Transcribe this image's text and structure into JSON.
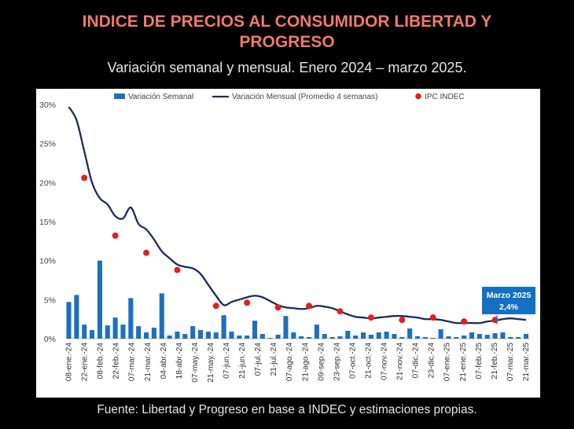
{
  "header": {
    "title_line1": "INDICE DE PRECIOS AL CONSUMIDOR LIBERTAD Y",
    "title_line2": "PROGRESO",
    "subtitle": "Variación semanal y mensual. Enero 2024 – marzo 2025."
  },
  "footer": {
    "source": "Fuente: Libertad y Progreso en base a INDEC y estimaciones propias."
  },
  "colors": {
    "bar": "#1f6fbf",
    "line": "#1c2b5a",
    "dot": "#e02020",
    "callout": "#1470c0"
  },
  "callout": {
    "line1": "Marzo 2025",
    "line2": "2,4%"
  },
  "chart_data": {
    "type": "bar",
    "ylim": [
      0,
      30
    ],
    "yticks": [
      "0%",
      "5%",
      "10%",
      "15%",
      "20%",
      "25%",
      "30%"
    ],
    "grid": false,
    "legend": {
      "position": "top",
      "entries": [
        "Variación Semanal",
        "Variación Mensual (Promedio 4 semanas)",
        "IPC INDEC"
      ]
    },
    "x_tick_labels": [
      "08-ene.-24",
      "22-ene.-24",
      "08-feb.-24",
      "22-feb.-24",
      "07-mar.-24",
      "21-mar.-24",
      "04-abr.-24",
      "18-abr.-24",
      "07-may.-24",
      "21-may.-24",
      "07-jun.-24",
      "21-jun.-24",
      "07-jul.-24",
      "21-jul.-24",
      "07-ago.-24",
      "21-ago.-24",
      "09-sep.-24",
      "23-sep.-24",
      "07-oct.-24",
      "21-oct.-24",
      "07-nov.-24",
      "21-nov.-24",
      "07-dic.-24",
      "23-dic.-24",
      "07-ene.-25",
      "21-ene.-25",
      "07-feb.-25",
      "21-feb.-25",
      "07-mar.-25",
      "21-mar.-25"
    ],
    "series": [
      {
        "name": "Variación Semanal",
        "type": "bar",
        "values": [
          4.7,
          5.6,
          1.8,
          1.1,
          10.0,
          1.7,
          2.7,
          1.8,
          5.2,
          1.6,
          0.8,
          1.4,
          5.8,
          0.4,
          0.9,
          0.6,
          1.6,
          1.1,
          0.9,
          0.8,
          3.0,
          0.9,
          0.4,
          0.4,
          2.3,
          0.6,
          0.1,
          0.5,
          2.9,
          0.8,
          0.3,
          0.2,
          1.8,
          0.6,
          0.2,
          0.3,
          1.0,
          0.4,
          0.8,
          0.5,
          0.8,
          0.9,
          0.6,
          0.2,
          1.3,
          0.3,
          0.2,
          0.1,
          1.2,
          0.3,
          0.2,
          0.4,
          0.8,
          0.6,
          0.5,
          0.7,
          0.8,
          0.2,
          0.2,
          0.6
        ]
      },
      {
        "name": "Variación Mensual (Promedio 4 semanas)",
        "type": "line",
        "values": [
          29.7,
          28.0,
          24.0,
          20.0,
          18.0,
          17.2,
          15.7,
          15.4,
          16.8,
          14.7,
          14.0,
          12.7,
          11.2,
          10.3,
          9.5,
          9.2,
          9.0,
          8.3,
          6.9,
          5.5,
          4.3,
          4.7,
          5.0,
          5.3,
          5.5,
          5.3,
          4.8,
          4.3,
          4.0,
          3.9,
          3.8,
          3.9,
          4.2,
          4.1,
          3.9,
          3.5,
          3.1,
          2.8,
          2.7,
          2.6,
          2.7,
          2.8,
          2.9,
          2.9,
          2.8,
          2.7,
          2.5,
          2.5,
          2.4,
          2.2,
          2.0,
          2.0,
          2.0,
          2.0,
          2.2,
          2.3,
          2.5,
          2.6,
          2.5,
          2.4
        ]
      },
      {
        "name": "IPC INDEC",
        "type": "scatter",
        "points": [
          [
            2,
            20.6
          ],
          [
            6,
            13.2
          ],
          [
            10,
            11.0
          ],
          [
            14,
            8.8
          ],
          [
            19,
            4.2
          ],
          [
            23,
            4.6
          ],
          [
            27,
            4.0
          ],
          [
            31,
            4.2
          ],
          [
            35,
            3.5
          ],
          [
            39,
            2.7
          ],
          [
            43,
            2.4
          ],
          [
            47,
            2.7
          ],
          [
            51,
            2.2
          ],
          [
            55,
            2.4
          ]
        ]
      }
    ]
  }
}
